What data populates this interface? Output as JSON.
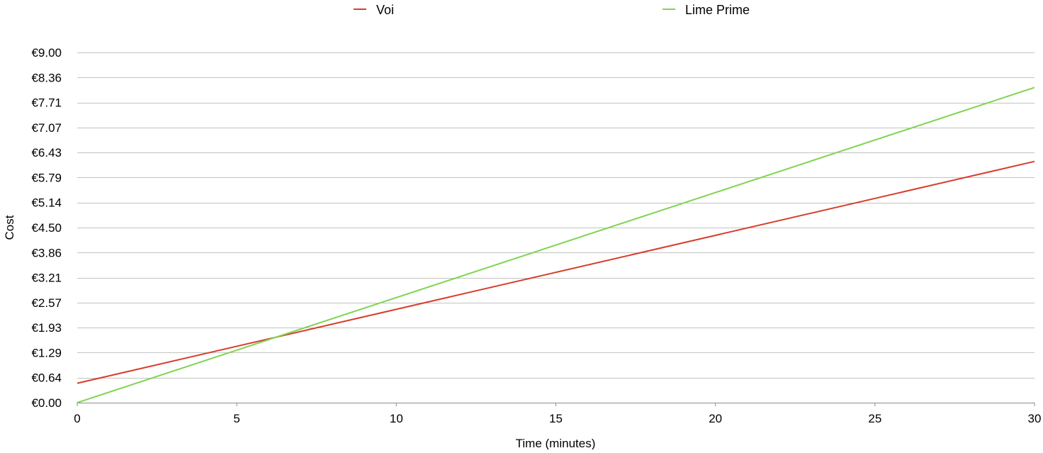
{
  "chart_data": {
    "type": "line",
    "title": "",
    "xlabel": "Time (minutes)",
    "ylabel": "Cost",
    "xlim": [
      0,
      30
    ],
    "ylim": [
      0,
      9
    ],
    "x_ticks": [
      0,
      5,
      10,
      15,
      20,
      25,
      30
    ],
    "x_tick_labels": [
      "0",
      "5",
      "10",
      "15",
      "20",
      "25",
      "30"
    ],
    "y_ticks": [
      0,
      0.643,
      1.286,
      1.929,
      2.571,
      3.214,
      3.857,
      4.5,
      5.143,
      5.786,
      6.429,
      7.071,
      7.714,
      8.357,
      9
    ],
    "y_tick_labels": [
      "€0.00",
      "€0.64",
      "€1.29",
      "€1.93",
      "€2.57",
      "€3.21",
      "€3.86",
      "€4.50",
      "€5.14",
      "€5.79",
      "€6.43",
      "€7.07",
      "€7.71",
      "€8.36",
      "€9.00"
    ],
    "grid": "horizontal",
    "legend_position": "top",
    "series": [
      {
        "name": "Voi",
        "color": "#d63d2b",
        "x": [
          0,
          30
        ],
        "values": [
          0.5,
          6.2
        ]
      },
      {
        "name": "Lime Prime",
        "color": "#7fd451",
        "x": [
          0,
          30
        ],
        "values": [
          0.0,
          8.1
        ]
      }
    ]
  }
}
